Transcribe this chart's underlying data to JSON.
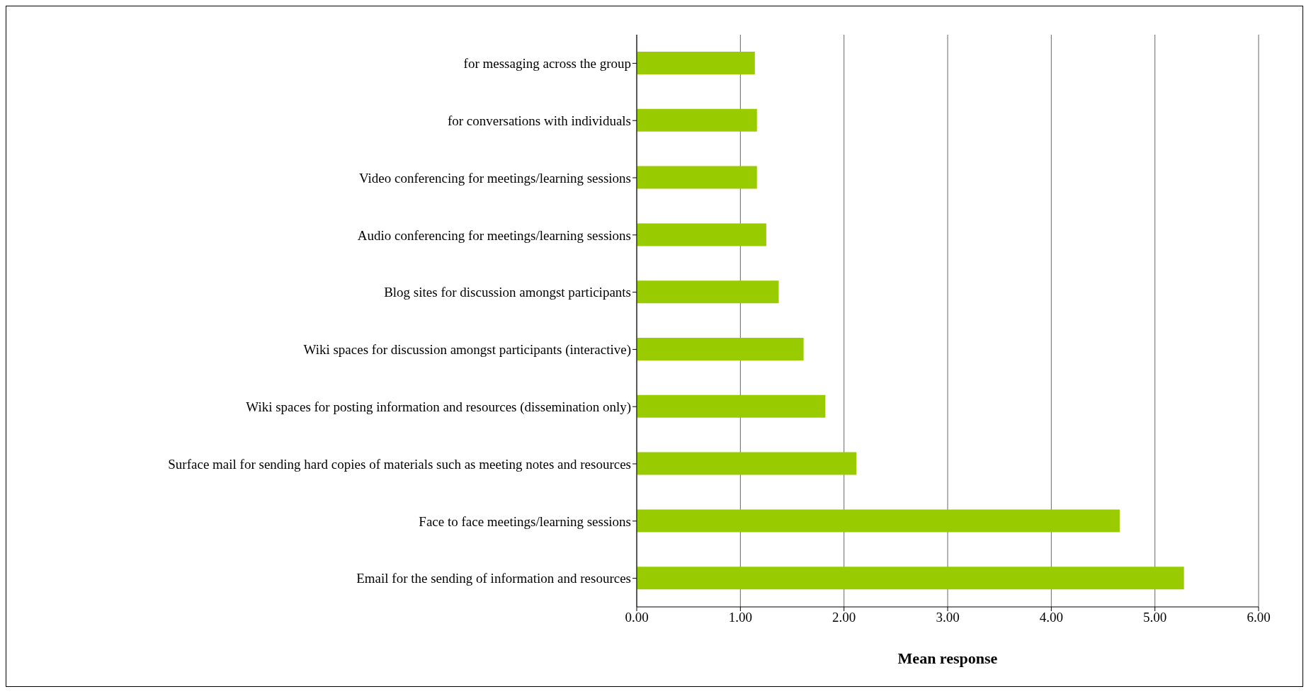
{
  "chart_data": {
    "type": "bar",
    "orientation": "horizontal",
    "xlabel": "Mean response",
    "categories": [
      "for messaging across the group",
      "for conversations with individuals",
      "Video conferencing for meetings/learning sessions",
      "Audio conferencing for meetings/learning sessions",
      "Blog sites for discussion amongst participants",
      "Wiki spaces for discussion amongst participants (interactive)",
      "Wiki spaces for posting information and resources (dissemination only)",
      "Surface mail for sending hard copies of materials such as meeting notes and resources",
      "Face to face meetings/learning sessions",
      "Email for the sending of information and resources"
    ],
    "values": [
      1.14,
      1.16,
      1.16,
      1.25,
      1.37,
      1.61,
      1.82,
      2.12,
      4.66,
      5.28
    ],
    "color": "#99cc00",
    "xlim": [
      0,
      6
    ],
    "xticks": [
      {
        "value": 0,
        "label": "0.00"
      },
      {
        "value": 1,
        "label": "1.00"
      },
      {
        "value": 2,
        "label": "2.00"
      },
      {
        "value": 3,
        "label": "3.00"
      },
      {
        "value": 4,
        "label": "4.00"
      },
      {
        "value": 5,
        "label": "5.00"
      },
      {
        "value": 6,
        "label": "6.00"
      }
    ],
    "grid": "x",
    "legend": false
  }
}
